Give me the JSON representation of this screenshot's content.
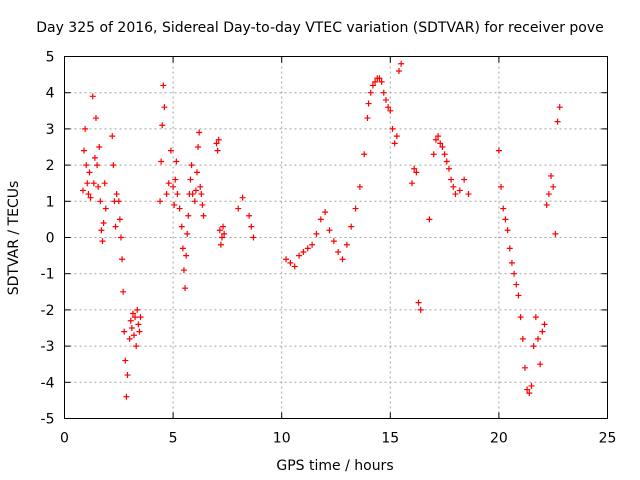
{
  "chart_data": {
    "type": "scatter",
    "title": "Day 325 of 2016, Sidereal Day-to-day VTEC variation (SDTVAR) for receiver pove",
    "xlabel": "GPS time / hours",
    "ylabel": "SDTVAR / TECUs",
    "xlim": [
      0,
      25
    ],
    "ylim": [
      -5,
      5
    ],
    "xticks": [
      "0",
      "5",
      "10",
      "15",
      "20",
      "25"
    ],
    "yticks": [
      "5",
      "4",
      "3",
      "2",
      "1",
      "0",
      "-1",
      "-2",
      "-3",
      "-4",
      "-5"
    ],
    "grid": true,
    "marker": "+",
    "series": [
      {
        "name": "SDTVAR",
        "color": "#ff0000",
        "x": [
          0.85,
          0.9,
          0.95,
          1.0,
          1.05,
          1.1,
          1.15,
          1.2,
          1.3,
          1.35,
          1.4,
          1.45,
          1.5,
          1.55,
          1.6,
          1.65,
          1.7,
          1.75,
          1.8,
          1.85,
          1.9,
          2.2,
          2.25,
          2.3,
          2.35,
          2.4,
          2.5,
          2.55,
          2.6,
          2.65,
          2.7,
          2.75,
          2.8,
          2.85,
          2.9,
          3.0,
          3.05,
          3.1,
          3.15,
          3.2,
          3.25,
          3.3,
          3.35,
          3.4,
          3.45,
          3.5,
          4.4,
          4.45,
          4.5,
          4.55,
          4.6,
          4.7,
          4.8,
          4.9,
          5.0,
          5.05,
          5.1,
          5.15,
          5.2,
          5.3,
          5.4,
          5.45,
          5.5,
          5.55,
          5.6,
          5.65,
          5.7,
          5.75,
          5.8,
          5.85,
          5.9,
          6.0,
          6.05,
          6.1,
          6.15,
          6.2,
          6.25,
          6.3,
          6.35,
          6.4,
          7.0,
          7.05,
          7.1,
          7.15,
          7.2,
          7.25,
          7.3,
          7.35,
          8.0,
          8.2,
          8.5,
          8.6,
          8.7,
          10.2,
          10.4,
          10.6,
          10.8,
          11.0,
          11.2,
          11.4,
          11.6,
          11.8,
          12.0,
          12.2,
          12.4,
          12.6,
          12.8,
          13.0,
          13.2,
          13.4,
          13.6,
          13.8,
          13.95,
          14.0,
          14.1,
          14.2,
          14.3,
          14.4,
          14.5,
          14.6,
          14.7,
          14.8,
          14.9,
          15.0,
          15.1,
          15.2,
          15.3,
          15.4,
          15.5,
          16.0,
          16.1,
          16.2,
          16.3,
          16.4,
          16.8,
          17.0,
          17.1,
          17.2,
          17.3,
          17.4,
          17.5,
          17.6,
          17.7,
          17.8,
          17.9,
          18.0,
          18.2,
          18.4,
          18.6,
          20.0,
          20.1,
          20.2,
          20.3,
          20.4,
          20.5,
          20.6,
          20.7,
          20.8,
          20.9,
          21.0,
          21.1,
          21.2,
          21.3,
          21.4,
          21.5,
          21.6,
          21.7,
          21.8,
          21.9,
          22.0,
          22.1,
          22.2,
          22.3,
          22.4,
          22.5,
          22.6,
          22.7,
          22.8
        ],
        "y": [
          1.3,
          2.4,
          3.0,
          2.0,
          1.5,
          1.2,
          1.8,
          1.1,
          3.9,
          1.5,
          2.2,
          3.3,
          2.0,
          1.4,
          2.5,
          1.0,
          0.2,
          -0.1,
          0.4,
          1.5,
          0.8,
          2.8,
          2.0,
          1.0,
          0.3,
          1.2,
          1.0,
          0.5,
          0.0,
          -0.6,
          -1.5,
          -2.6,
          -3.4,
          -4.4,
          -3.8,
          -2.8,
          -2.3,
          -2.5,
          -2.1,
          -2.7,
          -2.2,
          -3.0,
          -2.0,
          -2.4,
          -2.6,
          -2.2,
          1.0,
          2.1,
          3.1,
          4.2,
          3.6,
          1.2,
          1.5,
          2.4,
          1.4,
          0.9,
          1.6,
          2.1,
          1.2,
          0.8,
          0.3,
          -0.3,
          -0.9,
          -1.4,
          -0.5,
          0.1,
          0.6,
          1.2,
          1.6,
          2.0,
          1.2,
          1.0,
          1.3,
          1.8,
          2.5,
          2.9,
          1.4,
          1.2,
          0.9,
          0.6,
          2.6,
          2.4,
          2.7,
          0.2,
          -0.2,
          0.0,
          0.3,
          0.1,
          0.8,
          1.1,
          0.6,
          0.3,
          0.0,
          -0.6,
          -0.7,
          -0.8,
          -0.5,
          -0.4,
          -0.3,
          -0.2,
          0.1,
          0.5,
          0.7,
          0.2,
          -0.1,
          -0.4,
          -0.6,
          -0.2,
          0.3,
          0.8,
          1.4,
          2.3,
          3.3,
          3.7,
          4.0,
          4.2,
          4.3,
          4.4,
          4.4,
          4.3,
          4.0,
          3.8,
          3.6,
          3.5,
          3.0,
          2.6,
          2.8,
          4.6,
          4.8,
          1.5,
          1.9,
          1.8,
          -1.8,
          -2.0,
          0.5,
          2.3,
          2.7,
          2.8,
          2.6,
          2.5,
          2.3,
          2.1,
          1.9,
          1.6,
          1.4,
          1.2,
          1.3,
          1.6,
          1.2,
          2.4,
          1.4,
          0.8,
          0.5,
          0.2,
          -0.3,
          -0.7,
          -1.0,
          -1.3,
          -1.6,
          -2.2,
          -2.8,
          -3.6,
          -4.2,
          -4.3,
          -4.1,
          -3.0,
          -2.2,
          -2.8,
          -3.5,
          -2.6,
          -2.4,
          0.9,
          1.2,
          1.7,
          1.4,
          0.1,
          3.2,
          3.6
        ]
      }
    ]
  }
}
